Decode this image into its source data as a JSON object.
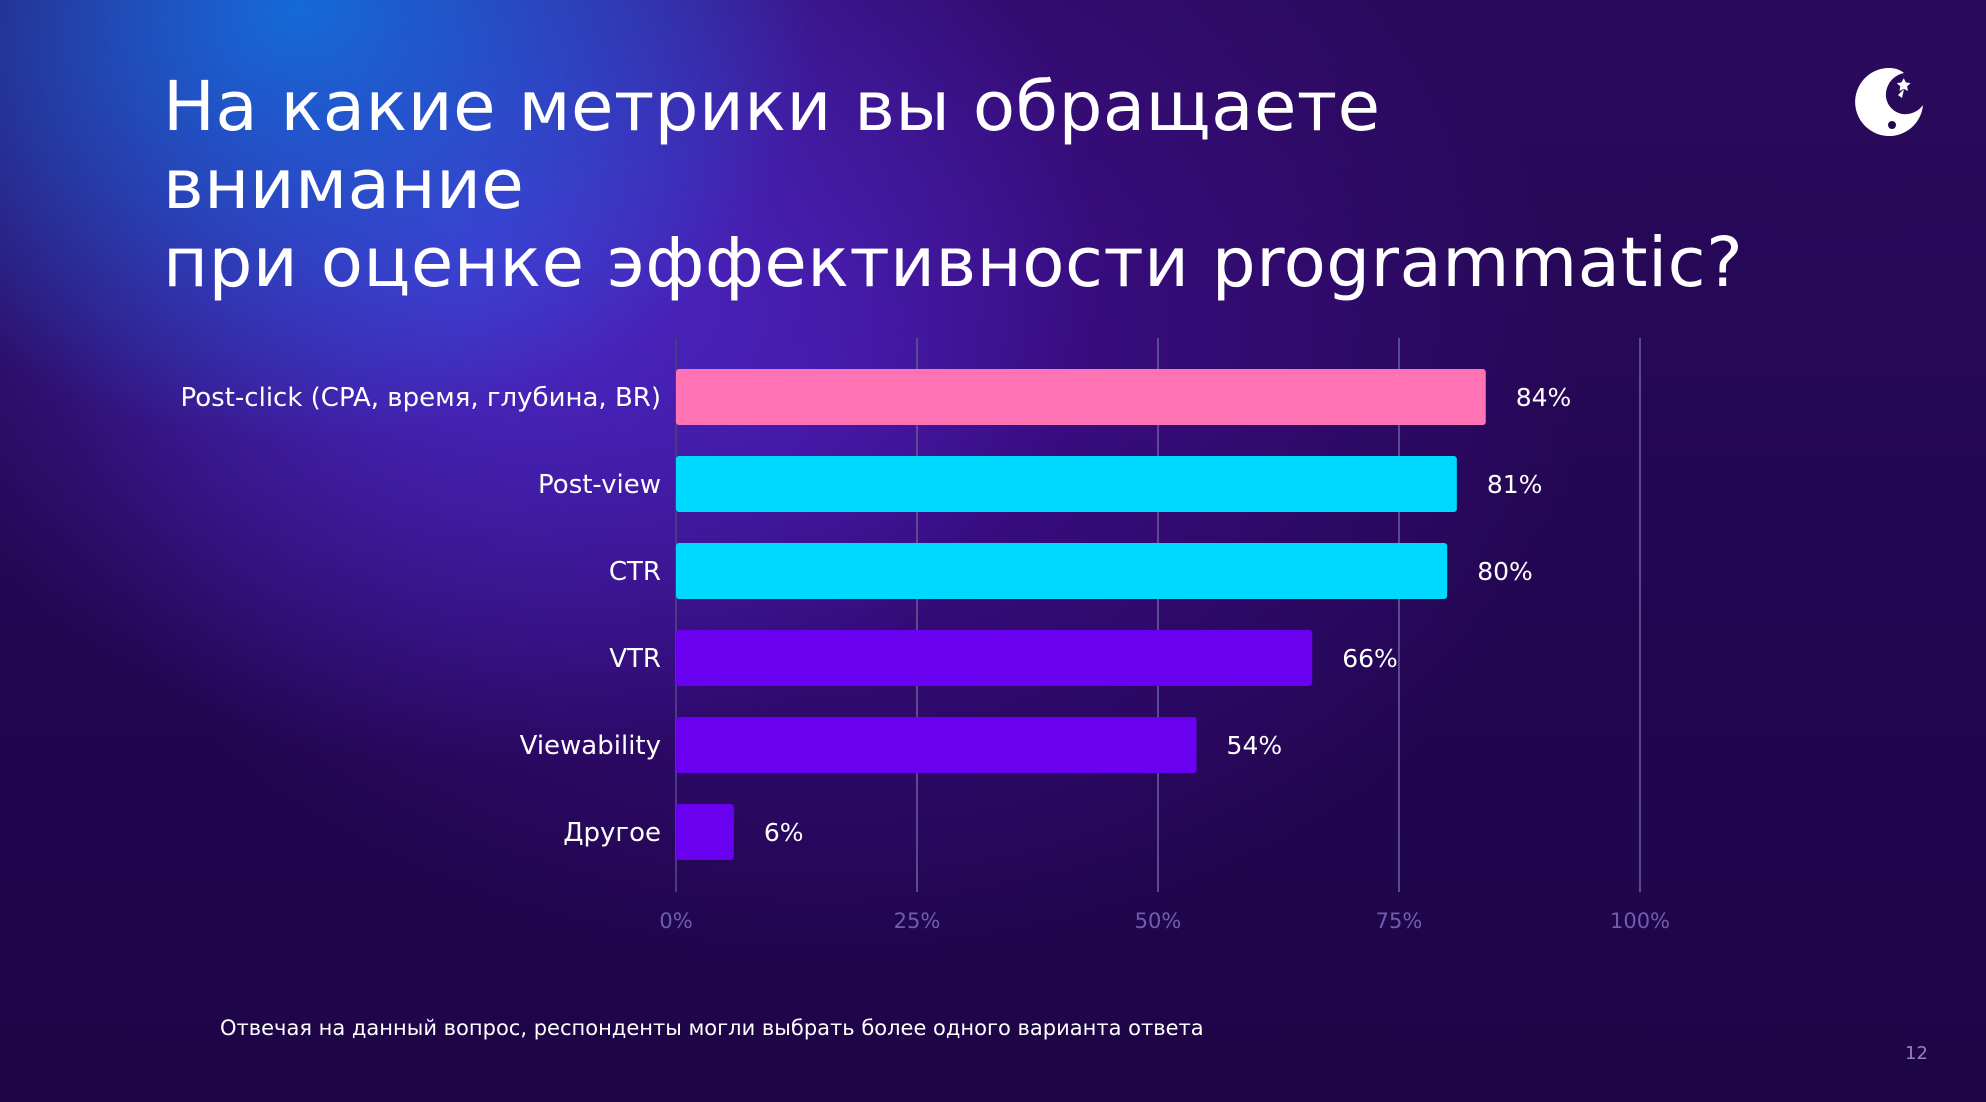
{
  "title": {
    "line1": "На какие метрики вы обращаете внимание",
    "line2": "при оценке эффективности programmatic?"
  },
  "footnote": "Отвечая на данный вопрос, респонденты могли выбрать более одного варианта ответа",
  "page_number": "12",
  "logo": {
    "icon": "rocket-moon-logo-icon",
    "color": "#ffffff"
  },
  "chart_data": {
    "type": "bar",
    "orientation": "horizontal",
    "categories": [
      "Post-click (CPA, время, глубина, BR)",
      "Post-view",
      "CTR",
      "VTR",
      "Viewability",
      "Другое"
    ],
    "values": [
      84,
      81,
      80,
      66,
      54,
      6
    ],
    "value_labels": [
      "84%",
      "81%",
      "80%",
      "66%",
      "54%",
      "6%"
    ],
    "bar_colors": [
      "#ff73b5",
      "#00d9ff",
      "#00d9ff",
      "#6a00f0",
      "#6a00f0",
      "#6a00f0"
    ],
    "x_ticks": [
      0,
      25,
      50,
      75,
      100
    ],
    "x_tick_labels": [
      "0%",
      "25%",
      "50%",
      "75%",
      "100%"
    ],
    "xlim": [
      0,
      100
    ],
    "grid": true,
    "colors": {
      "gridline": "#5a4a90",
      "tick_label": "#6d5fb0",
      "label": "#ffffff"
    }
  }
}
